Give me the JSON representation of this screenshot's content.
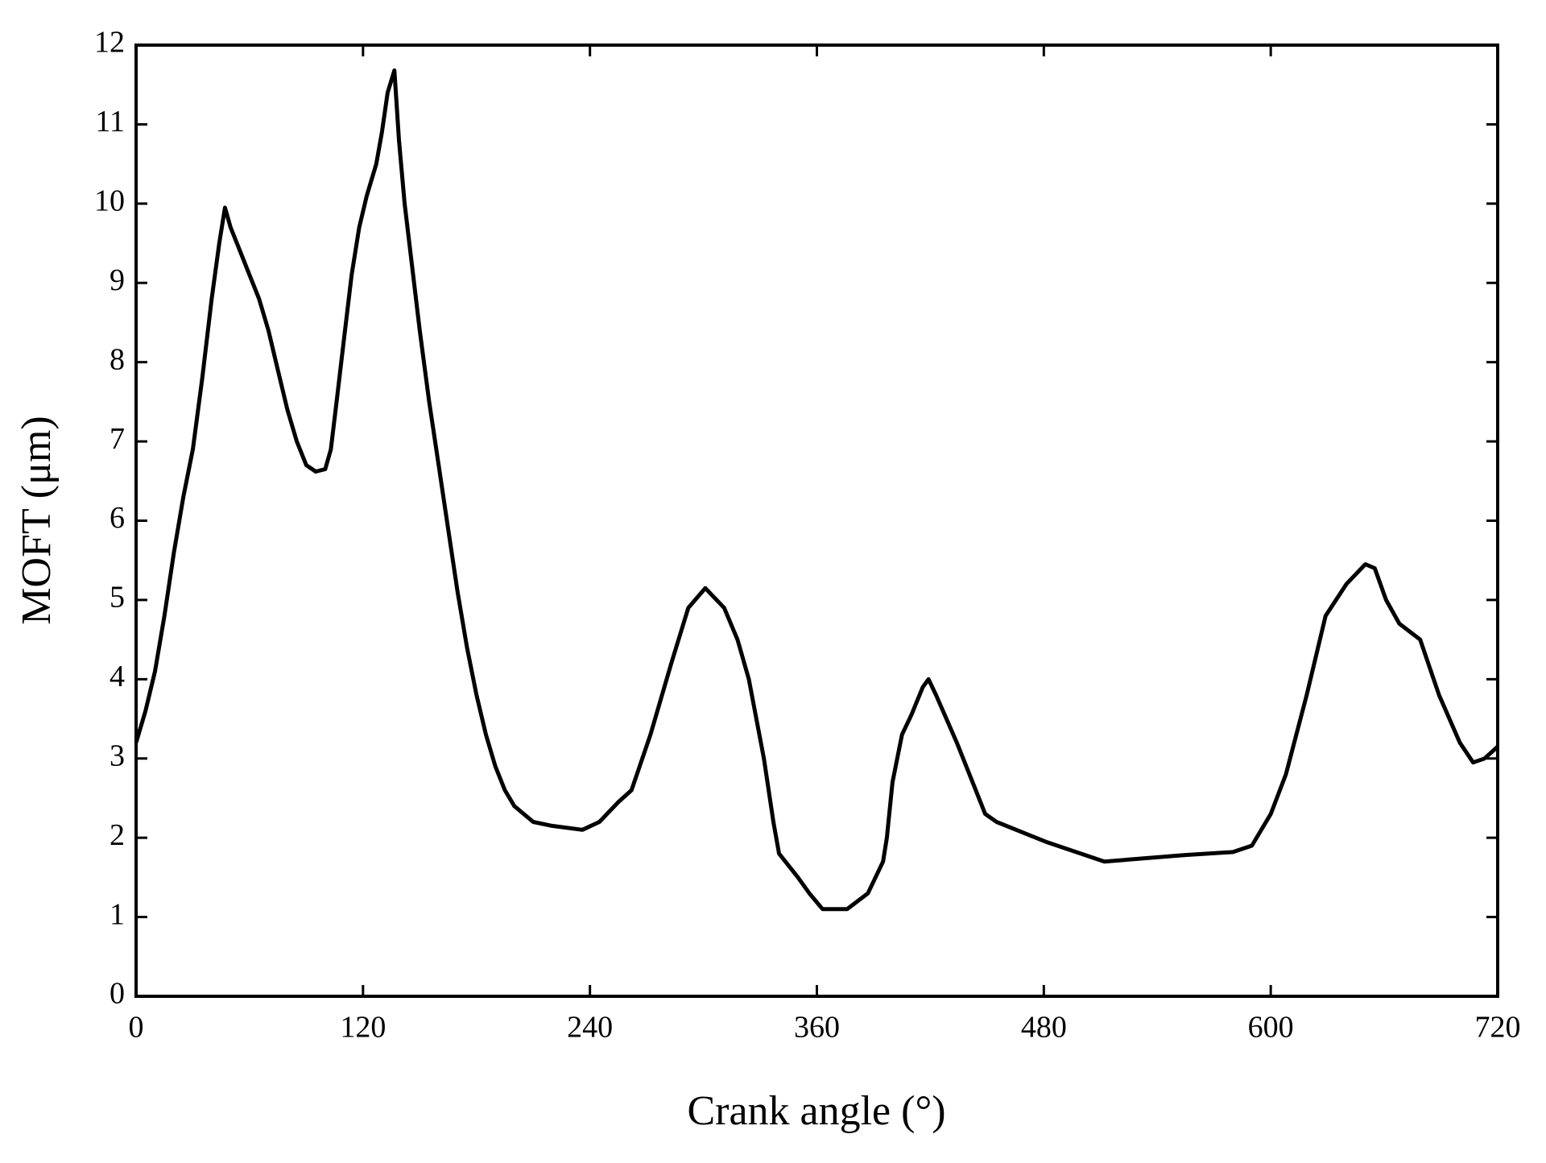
{
  "chart_data": {
    "type": "line",
    "xlabel": "Crank angle (°)",
    "ylabel": "MOFT (μm)",
    "xlim": [
      0,
      720
    ],
    "xticks": [
      0,
      120,
      240,
      360,
      480,
      600,
      720
    ],
    "ylim": [
      0,
      12
    ],
    "yticks": [
      0,
      1,
      2,
      3,
      4,
      5,
      6,
      7,
      8,
      9,
      10,
      11,
      12
    ],
    "grid": false,
    "series": [
      {
        "color": "#000000",
        "x": [
          0,
          5,
          10,
          15,
          20,
          25,
          30,
          35,
          40,
          44,
          47,
          50,
          55,
          60,
          65,
          70,
          75,
          80,
          85,
          90,
          95,
          100,
          103,
          106,
          110,
          114,
          118,
          122,
          127,
          130,
          133,
          136.6,
          139,
          142,
          146,
          150,
          155,
          160,
          165,
          170,
          175,
          180,
          185,
          190,
          195,
          200,
          210,
          220,
          236,
          245,
          255,
          262,
          272,
          283,
          292,
          301,
          311,
          318,
          324,
          332,
          337,
          340,
          350,
          356,
          363,
          370,
          376,
          387,
          395,
          397,
          400,
          405,
          410,
          416,
          419,
          423,
          434,
          444,
          449,
          455,
          481,
          512,
          554,
          580,
          590,
          600,
          608,
          619,
          629,
          640,
          650,
          655,
          661,
          668,
          679,
          689,
          700,
          707,
          713,
          720
        ],
        "values": [
          3.2,
          3.6,
          4.1,
          4.8,
          5.6,
          6.3,
          6.9,
          7.8,
          8.8,
          9.5,
          9.95,
          9.7,
          9.4,
          9.1,
          8.8,
          8.4,
          7.9,
          7.4,
          7.0,
          6.7,
          6.62,
          6.65,
          6.9,
          7.5,
          8.3,
          9.1,
          9.7,
          10.1,
          10.5,
          10.9,
          11.4,
          11.68,
          10.8,
          10.0,
          9.2,
          8.4,
          7.5,
          6.7,
          5.9,
          5.1,
          4.4,
          3.8,
          3.3,
          2.9,
          2.6,
          2.4,
          2.2,
          2.15,
          2.1,
          2.2,
          2.45,
          2.6,
          3.3,
          4.2,
          4.9,
          5.15,
          4.9,
          4.5,
          4.0,
          3.0,
          2.2,
          1.8,
          1.5,
          1.3,
          1.1,
          1.1,
          1.1,
          1.3,
          1.7,
          2.0,
          2.7,
          3.3,
          3.55,
          3.9,
          4.0,
          3.8,
          3.2,
          2.6,
          2.3,
          2.2,
          1.95,
          1.7,
          1.78,
          1.82,
          1.9,
          2.3,
          2.8,
          3.8,
          4.8,
          5.2,
          5.45,
          5.4,
          5.0,
          4.7,
          4.5,
          3.8,
          3.2,
          2.95,
          3.0,
          3.15
        ]
      }
    ]
  }
}
